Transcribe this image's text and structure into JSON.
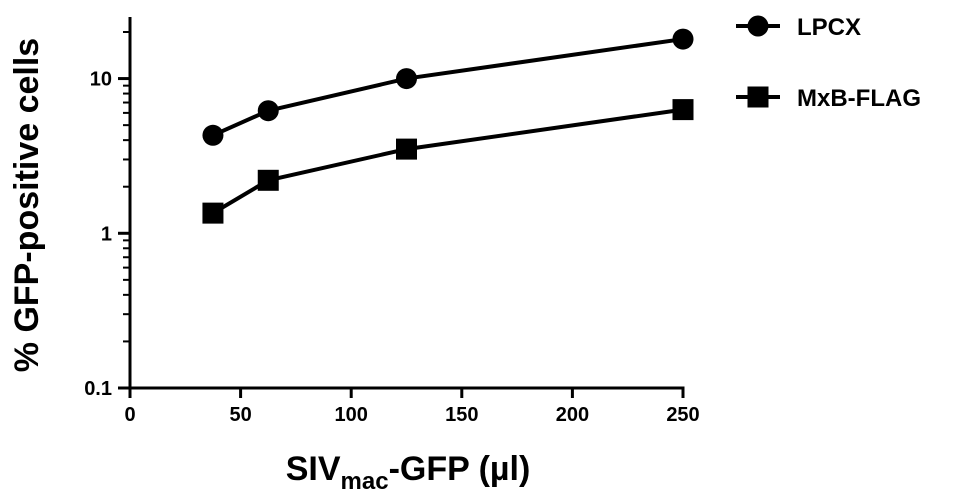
{
  "chart_data": {
    "type": "line",
    "xlabel": {
      "main": "SIV",
      "sub": "mac",
      "rest": "-GFP (µl)"
    },
    "ylabel": "% GFP-positive cells",
    "y_scale": "log",
    "xlim": [
      0,
      250
    ],
    "ylim": [
      0.1,
      25
    ],
    "x_ticks": [
      0,
      50,
      100,
      150,
      200,
      250
    ],
    "x_tick_labels": [
      "0",
      "50",
      "100",
      "150",
      "200",
      "250"
    ],
    "y_ticks": [
      0.1,
      1,
      10
    ],
    "y_tick_labels": [
      "0.1",
      "1",
      "10"
    ],
    "grid": false,
    "legend_position": "right",
    "x": [
      37.5,
      62.5,
      125,
      250
    ],
    "series": [
      {
        "name": "LPCX",
        "marker": "circle",
        "values": [
          4.3,
          6.2,
          10.0,
          18.0
        ]
      },
      {
        "name": "MxB-FLAG",
        "marker": "square",
        "values": [
          1.35,
          2.2,
          3.5,
          6.3
        ]
      }
    ]
  }
}
